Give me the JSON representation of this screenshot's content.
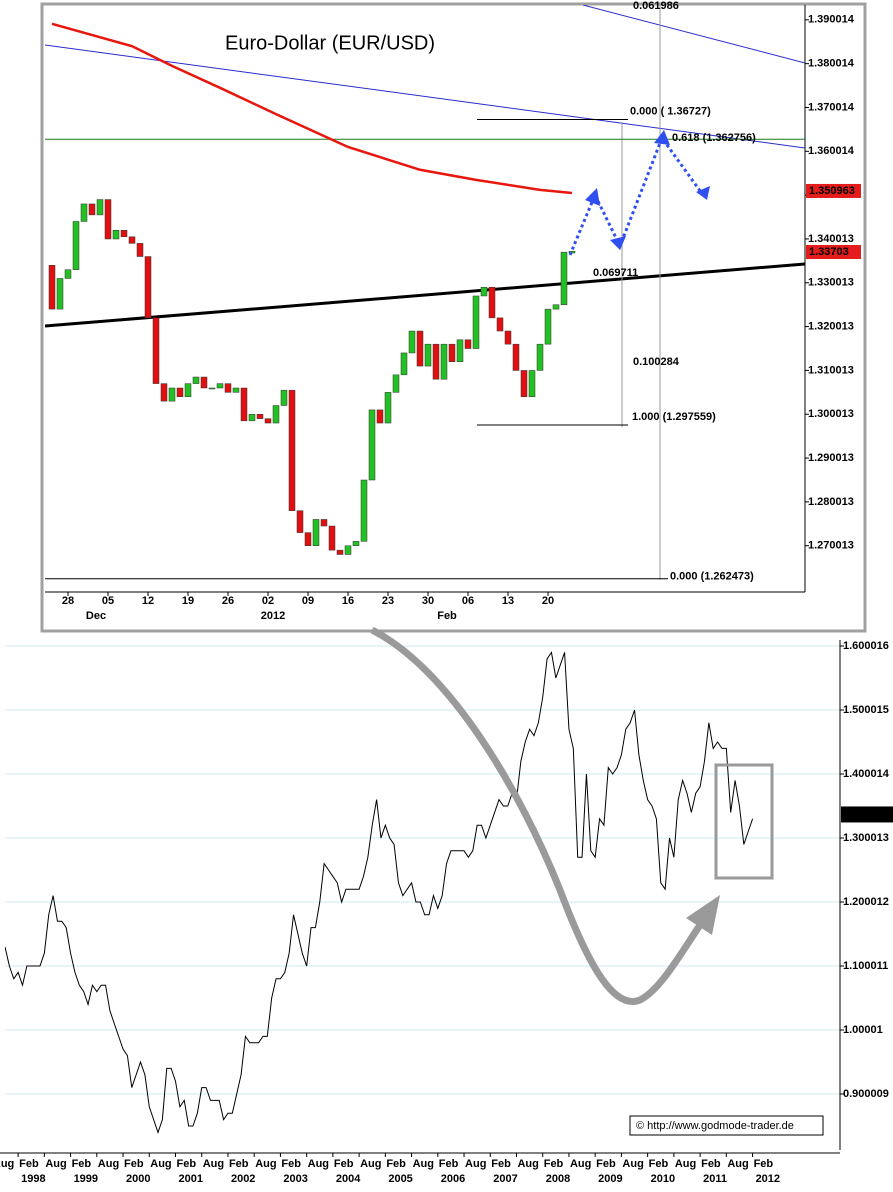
{
  "chart_data": [
    {
      "type": "candlestick",
      "title": "Euro-Dollar  (EUR/USD)",
      "categories": [
        null,
        null,
        "28",
        null,
        null,
        null,
        null,
        "05",
        null,
        null,
        null,
        null,
        "12",
        null,
        null,
        null,
        null,
        "19",
        null,
        null,
        null,
        null,
        "26",
        null,
        null,
        null,
        null,
        "02",
        null,
        null,
        null,
        null,
        "09",
        null,
        null,
        null,
        null,
        "16",
        null,
        null,
        null,
        null,
        "23",
        null,
        null,
        null,
        null,
        "30",
        null,
        null,
        null,
        null,
        "06",
        null,
        null,
        null,
        null,
        "13",
        null,
        null,
        null,
        null,
        "20",
        null,
        null,
        null
      ],
      "period_labels": [
        "Dec",
        "2012",
        "Feb"
      ],
      "open": [
        1.334,
        1.324,
        1.331,
        1.333,
        1.344,
        1.348,
        1.3455,
        1.349,
        1.34,
        1.342,
        1.3405,
        1.339,
        1.336,
        1.322,
        1.307,
        1.303,
        1.306,
        1.304,
        1.307,
        1.3085,
        1.306,
        1.306,
        1.307,
        1.305,
        1.306,
        1.2985,
        1.3,
        1.299,
        1.298,
        1.302,
        1.3055,
        1.278,
        1.273,
        1.27,
        1.276,
        1.2745,
        1.269,
        1.268,
        1.27,
        1.271,
        1.285,
        1.301,
        1.298,
        1.305,
        1.309,
        1.314,
        1.319,
        1.311,
        1.316,
        1.308,
        1.316,
        1.312,
        1.317,
        1.315,
        1.327,
        1.329,
        1.322,
        1.319,
        1.316,
        1.31,
        1.304,
        1.31,
        1.316,
        1.324,
        1.325,
        1.3368
      ],
      "close": [
        1.324,
        1.331,
        1.333,
        1.344,
        1.348,
        1.3455,
        1.349,
        1.34,
        1.342,
        1.3405,
        1.339,
        1.336,
        1.322,
        1.307,
        1.303,
        1.306,
        1.304,
        1.307,
        1.3085,
        1.306,
        1.306,
        1.307,
        1.305,
        1.306,
        1.2985,
        1.3,
        1.299,
        1.298,
        1.302,
        1.3055,
        1.278,
        1.273,
        1.27,
        1.276,
        1.2745,
        1.269,
        1.268,
        1.27,
        1.271,
        1.285,
        1.301,
        1.298,
        1.305,
        1.309,
        1.314,
        1.319,
        1.311,
        1.316,
        1.308,
        1.316,
        1.312,
        1.317,
        1.315,
        1.327,
        1.329,
        1.322,
        1.319,
        1.316,
        1.31,
        1.304,
        1.31,
        1.316,
        1.324,
        1.325,
        1.337,
        1.3372
      ],
      "up_color": "#22c022",
      "down_color": "#e01010",
      "ylim": [
        1.2599,
        1.3934
      ],
      "yticks": [
        1.390014,
        1.380014,
        1.370014,
        1.360014,
        1.350014,
        1.340013,
        1.330013,
        1.320013,
        1.310013,
        1.300013,
        1.290013,
        1.280013,
        1.270013
      ],
      "overlays": [
        {
          "color": "#e8160c",
          "x": [
            0,
            10,
            15,
            21,
            28,
            37,
            46,
            53,
            61,
            65
          ],
          "values": [
            1.3891,
            1.384,
            1.3795,
            1.3745,
            1.3685,
            1.361,
            1.3558,
            1.3535,
            1.3512,
            1.3505
          ]
        }
      ],
      "fib_levels": [
        {
          "label": "0.000 ( 1.36727)",
          "value": 1.36727,
          "color": "#000000"
        },
        {
          "label": "0.618 (1.362756)",
          "value": 1.362756,
          "color": "#1a7a1a"
        },
        {
          "label": "1.000 (1.297559)",
          "value": 1.297559,
          "color": "#000000"
        },
        {
          "label": "0.000 (1.262473)",
          "value": 1.262473,
          "color": "#000000"
        }
      ],
      "annotations": [
        "0.061986",
        "0.069711",
        "0.100284"
      ],
      "last_values": [
        {
          "value": 1.350963,
          "color": "#e41c1c"
        },
        {
          "value": 1.33703,
          "color": "#e41c1c"
        }
      ]
    },
    {
      "type": "line",
      "color": "#000000",
      "x": [
        "1997-11",
        "1997-12",
        "1998-01",
        "1998-02",
        "1998-03",
        "1998-04",
        "1998-05",
        "1998-06",
        "1998-07",
        "1998-08",
        "1998-09",
        "1998-10",
        "1998-11",
        "1998-12",
        "1999-01",
        "1999-02",
        "1999-03",
        "1999-04",
        "1999-05",
        "1999-06",
        "1999-07",
        "1999-08",
        "1999-09",
        "1999-10",
        "1999-11",
        "1999-12",
        "2000-01",
        "2000-02",
        "2000-03",
        "2000-04",
        "2000-05",
        "2000-06",
        "2000-07",
        "2000-08",
        "2000-09",
        "2000-10",
        "2000-11",
        "2000-12",
        "2001-01",
        "2001-02",
        "2001-03",
        "2001-04",
        "2001-05",
        "2001-06",
        "2001-07",
        "2001-08",
        "2001-09",
        "2001-10",
        "2001-11",
        "2001-12",
        "2002-01",
        "2002-02",
        "2002-03",
        "2002-04",
        "2002-05",
        "2002-06",
        "2002-07",
        "2002-08",
        "2002-09",
        "2002-10",
        "2002-11",
        "2002-12",
        "2003-01",
        "2003-02",
        "2003-03",
        "2003-04",
        "2003-05",
        "2003-06",
        "2003-07",
        "2003-08",
        "2003-09",
        "2003-10",
        "2003-11",
        "2003-12",
        "2004-01",
        "2004-02",
        "2004-03",
        "2004-04",
        "2004-05",
        "2004-06",
        "2004-07",
        "2004-08",
        "2004-09",
        "2004-10",
        "2004-11",
        "2004-12",
        "2005-01",
        "2005-02",
        "2005-03",
        "2005-04",
        "2005-05",
        "2005-06",
        "2005-07",
        "2005-08",
        "2005-09",
        "2005-10",
        "2005-11",
        "2005-12",
        "2006-01",
        "2006-02",
        "2006-03",
        "2006-04",
        "2006-05",
        "2006-06",
        "2006-07",
        "2006-08",
        "2006-09",
        "2006-10",
        "2006-11",
        "2006-12",
        "2007-01",
        "2007-02",
        "2007-03",
        "2007-04",
        "2007-05",
        "2007-06",
        "2007-07",
        "2007-08",
        "2007-09",
        "2007-10",
        "2007-11",
        "2007-12",
        "2008-01",
        "2008-02",
        "2008-03",
        "2008-04",
        "2008-05",
        "2008-06",
        "2008-07",
        "2008-08",
        "2008-09",
        "2008-10",
        "2008-11",
        "2008-12",
        "2009-01",
        "2009-02",
        "2009-03",
        "2009-04",
        "2009-05",
        "2009-06",
        "2009-07",
        "2009-08",
        "2009-09",
        "2009-10",
        "2009-11",
        "2009-12",
        "2010-01",
        "2010-02",
        "2010-03",
        "2010-04",
        "2010-05",
        "2010-06",
        "2010-07",
        "2010-08",
        "2010-09",
        "2010-10",
        "2010-11",
        "2010-12",
        "2011-01",
        "2011-02",
        "2011-03",
        "2011-04",
        "2011-05",
        "2011-06",
        "2011-07",
        "2011-08",
        "2011-09",
        "2011-10",
        "2011-11",
        "2011-12",
        "2012-01",
        "2012-02"
      ],
      "values": [
        1.13,
        1.1,
        1.08,
        1.09,
        1.07,
        1.1,
        1.1,
        1.1,
        1.1,
        1.12,
        1.18,
        1.21,
        1.17,
        1.17,
        1.16,
        1.12,
        1.09,
        1.07,
        1.06,
        1.04,
        1.07,
        1.06,
        1.07,
        1.07,
        1.03,
        1.01,
        0.99,
        0.97,
        0.96,
        0.91,
        0.93,
        0.95,
        0.93,
        0.88,
        0.86,
        0.84,
        0.86,
        0.94,
        0.94,
        0.92,
        0.88,
        0.89,
        0.85,
        0.85,
        0.87,
        0.91,
        0.91,
        0.89,
        0.89,
        0.89,
        0.86,
        0.87,
        0.87,
        0.9,
        0.93,
        0.99,
        0.98,
        0.98,
        0.98,
        0.99,
        0.99,
        1.05,
        1.08,
        1.08,
        1.09,
        1.12,
        1.18,
        1.15,
        1.12,
        1.1,
        1.16,
        1.16,
        1.2,
        1.26,
        1.25,
        1.24,
        1.23,
        1.2,
        1.22,
        1.22,
        1.22,
        1.22,
        1.24,
        1.27,
        1.32,
        1.36,
        1.3,
        1.32,
        1.3,
        1.29,
        1.23,
        1.21,
        1.22,
        1.23,
        1.2,
        1.2,
        1.18,
        1.18,
        1.21,
        1.19,
        1.21,
        1.26,
        1.28,
        1.28,
        1.28,
        1.28,
        1.27,
        1.28,
        1.32,
        1.32,
        1.3,
        1.32,
        1.34,
        1.36,
        1.35,
        1.35,
        1.37,
        1.36,
        1.42,
        1.45,
        1.47,
        1.46,
        1.48,
        1.52,
        1.58,
        1.59,
        1.55,
        1.57,
        1.59,
        1.47,
        1.44,
        1.27,
        1.27,
        1.4,
        1.28,
        1.27,
        1.33,
        1.32,
        1.41,
        1.4,
        1.41,
        1.43,
        1.47,
        1.48,
        1.5,
        1.43,
        1.39,
        1.36,
        1.35,
        1.33,
        1.23,
        1.22,
        1.3,
        1.27,
        1.36,
        1.39,
        1.37,
        1.34,
        1.37,
        1.38,
        1.42,
        1.48,
        1.44,
        1.45,
        1.44,
        1.44,
        1.34,
        1.39,
        1.35,
        1.29,
        1.31,
        1.33
      ],
      "xlim": [
        "1997-11",
        "2013-10"
      ],
      "ylim": [
        0.8125,
        1.6094
      ],
      "yticks": [
        1.600016,
        1.500015,
        1.400014,
        1.300013,
        1.200012,
        1.100011,
        1.00001,
        0.900009
      ],
      "xticks": [
        {
          "value": "1997-08",
          "label": "Aug"
        },
        {
          "value": "1998-02",
          "label": "Feb"
        },
        {
          "value": "1998-08",
          "label": "Aug"
        },
        {
          "value": "1999-02",
          "label": "Feb"
        },
        {
          "value": "1999-08",
          "label": "Aug"
        },
        {
          "value": "2000-02",
          "label": "Feb"
        },
        {
          "value": "2000-08",
          "label": "Aug"
        },
        {
          "value": "2001-02",
          "label": "Feb"
        },
        {
          "value": "2001-08",
          "label": "Aug"
        },
        {
          "value": "2002-02",
          "label": "Feb"
        },
        {
          "value": "2002-08",
          "label": "Aug"
        },
        {
          "value": "2003-02",
          "label": "Feb"
        },
        {
          "value": "2003-08",
          "label": "Aug"
        },
        {
          "value": "2004-02",
          "label": "Feb"
        },
        {
          "value": "2004-08",
          "label": "Aug"
        },
        {
          "value": "2005-02",
          "label": "Feb"
        },
        {
          "value": "2005-08",
          "label": "Aug"
        },
        {
          "value": "2006-02",
          "label": "Feb"
        },
        {
          "value": "2006-08",
          "label": "Aug"
        },
        {
          "value": "2007-02",
          "label": "Feb"
        },
        {
          "value": "2007-08",
          "label": "Aug"
        },
        {
          "value": "2008-02",
          "label": "Feb"
        },
        {
          "value": "2008-08",
          "label": "Aug"
        },
        {
          "value": "2009-02",
          "label": "Feb"
        },
        {
          "value": "2009-08",
          "label": "Aug"
        },
        {
          "value": "2010-02",
          "label": "Feb"
        },
        {
          "value": "2010-08",
          "label": "Aug"
        },
        {
          "value": "2011-02",
          "label": "Feb"
        },
        {
          "value": "2011-08",
          "label": "Aug"
        },
        {
          "value": "2012-02",
          "label": "Feb"
        }
      ],
      "year_ticks": [
        {
          "value": "1998-02",
          "label": "1998"
        },
        {
          "value": "1999-02",
          "label": "1999"
        },
        {
          "value": "2000-02",
          "label": "2000"
        },
        {
          "value": "2001-02",
          "label": "2001"
        },
        {
          "value": "2002-02",
          "label": "2002"
        },
        {
          "value": "2003-02",
          "label": "2003"
        },
        {
          "value": "2004-02",
          "label": "2004"
        },
        {
          "value": "2005-02",
          "label": "2005"
        },
        {
          "value": "2006-02",
          "label": "2006"
        },
        {
          "value": "2007-02",
          "label": "2007"
        },
        {
          "value": "2008-02",
          "label": "2008"
        },
        {
          "value": "2009-02",
          "label": "2009"
        },
        {
          "value": "2010-02",
          "label": "2010"
        },
        {
          "value": "2011-02",
          "label": "2011"
        },
        {
          "value": "2012-02",
          "label": "2012"
        }
      ],
      "grid": true,
      "last_value": 1.33679,
      "source": "© http://www.godmode-trader.de"
    }
  ]
}
